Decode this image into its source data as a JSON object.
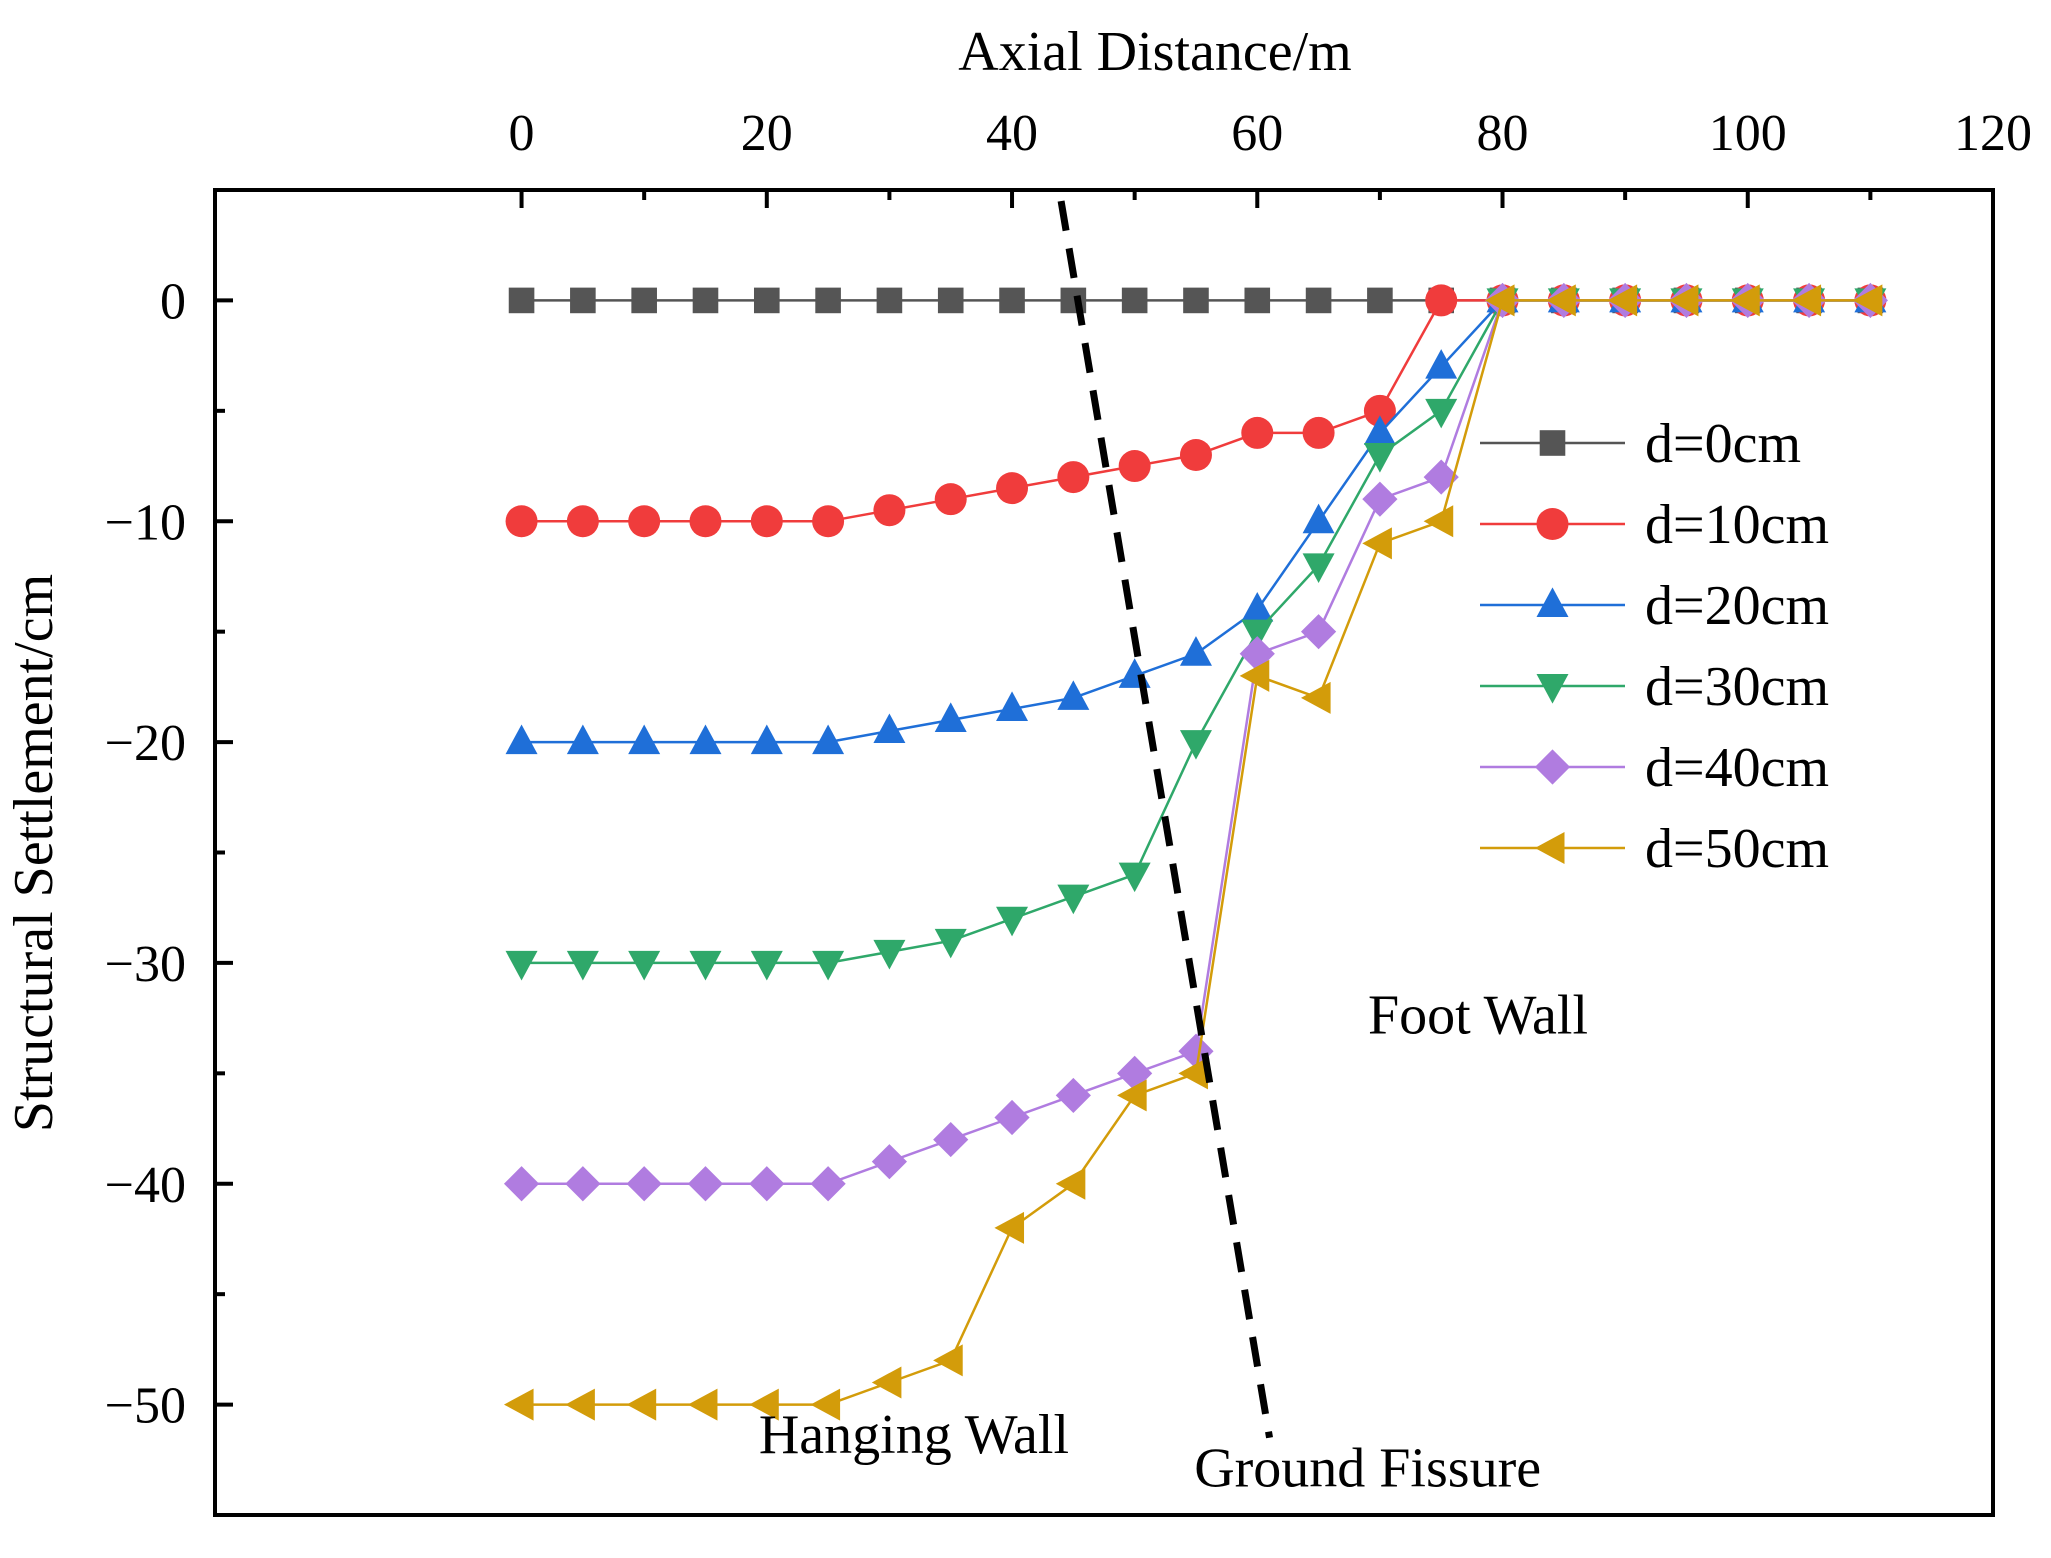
{
  "chart_data": {
    "type": "line",
    "title": "",
    "xlabel": "Axial Distance/m",
    "ylabel": "Structural Settlement/cm",
    "x_axis_position": "top",
    "xlim": [
      -25,
      120
    ],
    "ylim": [
      -55,
      5
    ],
    "x_ticks": [
      0,
      20,
      40,
      60,
      80,
      100,
      120
    ],
    "x_tick_labels": [
      "0",
      "20",
      "40",
      "60",
      "80",
      "100",
      "120"
    ],
    "y_ticks": [
      0,
      -10,
      -20,
      -30,
      -40,
      -50
    ],
    "y_tick_labels": [
      "0",
      "−10",
      "−20",
      "−30",
      "−40",
      "−50"
    ],
    "grid": false,
    "legend_placement": "right",
    "x": [
      0,
      5,
      10,
      15,
      20,
      25,
      30,
      35,
      40,
      45,
      50,
      55,
      60,
      65,
      70,
      75,
      80,
      85,
      90,
      95,
      100,
      105,
      110
    ],
    "series": [
      {
        "name": "d=0cm",
        "marker": "square",
        "color": "#555555",
        "values": [
          0,
          0,
          0,
          0,
          0,
          0,
          0,
          0,
          0,
          0,
          0,
          0,
          0,
          0,
          0,
          0,
          0,
          0,
          0,
          0,
          0,
          0,
          0
        ]
      },
      {
        "name": "d=10cm",
        "marker": "circle",
        "color": "#f03c3c",
        "values": [
          -10,
          -10,
          -10,
          -10,
          -10,
          -10,
          -9.5,
          -9,
          -8.5,
          -8,
          -7.5,
          -7,
          -6,
          -6,
          -5,
          0,
          0,
          0,
          0,
          0,
          0,
          0,
          0
        ]
      },
      {
        "name": "d=20cm",
        "marker": "triangle-up",
        "color": "#1f6fd8",
        "values": [
          -20,
          -20,
          -20,
          -20,
          -20,
          -20,
          -19.5,
          -19,
          -18.5,
          -18,
          -17,
          -16,
          -14,
          -10,
          -6,
          -3,
          0,
          0,
          0,
          0,
          0,
          0,
          0
        ]
      },
      {
        "name": "d=30cm",
        "marker": "triangle-down",
        "color": "#2fa86a",
        "values": [
          -30,
          -30,
          -30,
          -30,
          -30,
          -30,
          -29.5,
          -29,
          -28,
          -27,
          -26,
          -20,
          -15,
          -12,
          -7,
          -5,
          0,
          0,
          0,
          0,
          0,
          0,
          0
        ]
      },
      {
        "name": "d=40cm",
        "marker": "diamond",
        "color": "#b07ce0",
        "values": [
          -40,
          -40,
          -40,
          -40,
          -40,
          -40,
          -39,
          -38,
          -37,
          -36,
          -35,
          -34,
          -16,
          -15,
          -9,
          -8,
          0,
          0,
          0,
          0,
          0,
          0,
          0
        ]
      },
      {
        "name": "d=50cm",
        "marker": "triangle-left",
        "color": "#d39c0a",
        "values": [
          -50,
          -50,
          -50,
          -50,
          -50,
          -50,
          -49,
          -48,
          -42,
          -40,
          -36,
          -35,
          -17,
          -18,
          -11,
          -10,
          0,
          0,
          0,
          0,
          0,
          0,
          0
        ]
      }
    ],
    "reference_line": {
      "style": "dashed",
      "color": "#000000",
      "points": [
        [
          44,
          4.5
        ],
        [
          61,
          -51.5
        ]
      ]
    },
    "annotations": [
      {
        "text": "Foot Wall",
        "x": 78,
        "y": -33.2
      },
      {
        "text": "Hanging Wall",
        "x": 32,
        "y": -52.2
      },
      {
        "text": "Ground Fissure",
        "x": 69,
        "y": -53.7
      }
    ]
  }
}
